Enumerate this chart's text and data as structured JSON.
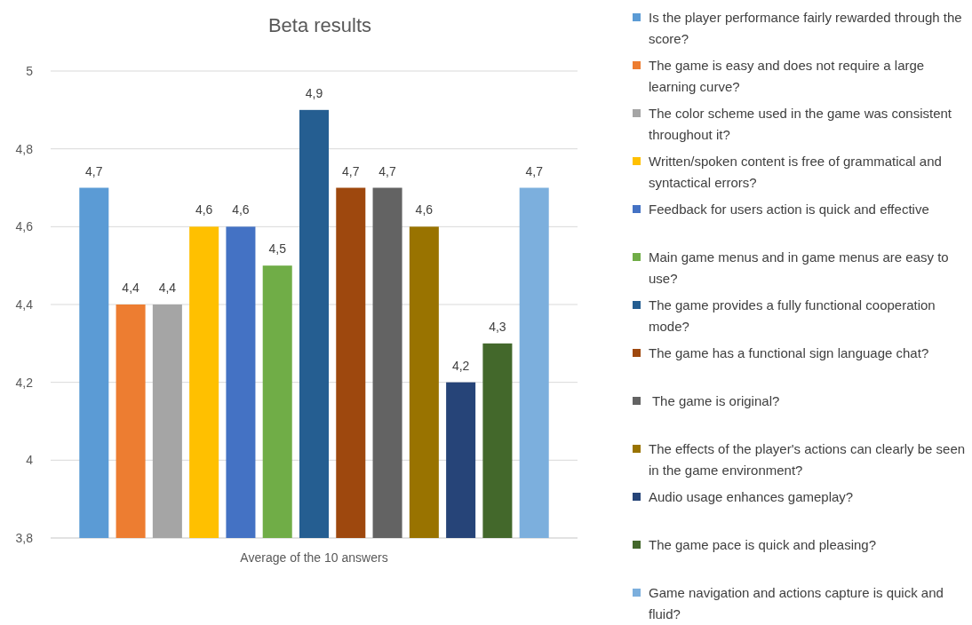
{
  "chart_data": {
    "type": "bar",
    "title": "Beta results",
    "categories": [
      "Average of the 10 answers"
    ],
    "ylim": [
      3.8,
      5
    ],
    "yticks": [
      {
        "value": 3.8,
        "label": "3,8"
      },
      {
        "value": 4,
        "label": "4"
      },
      {
        "value": 4.2,
        "label": "4,2"
      },
      {
        "value": 4.4,
        "label": "4,4"
      },
      {
        "value": 4.6,
        "label": "4,6"
      },
      {
        "value": 4.8,
        "label": "4,8"
      },
      {
        "value": 5,
        "label": "5"
      }
    ],
    "grid": "y",
    "legend": "right",
    "series": [
      {
        "name": "Is the player performance fairly rewarded through the score?",
        "color": "#5b9bd5",
        "values": [
          4.7
        ],
        "value_labels": [
          "4,7"
        ]
      },
      {
        "name": "The game is easy and does not require a large learning curve?",
        "color": "#ed7d31",
        "values": [
          4.4
        ],
        "value_labels": [
          "4,4"
        ]
      },
      {
        "name": "The color scheme used in the game was consistent throughout it?",
        "color": "#a5a5a5",
        "values": [
          4.4
        ],
        "value_labels": [
          "4,4"
        ]
      },
      {
        "name": "Written/spoken content is free of grammatical and syntactical errors?",
        "color": "#ffc000",
        "values": [
          4.6
        ],
        "value_labels": [
          "4,6"
        ]
      },
      {
        "name": "Feedback for users action is quick and effective",
        "color": "#4472c4",
        "values": [
          4.6
        ],
        "value_labels": [
          "4,6"
        ]
      },
      {
        "name": "Main game menus and in game menus are easy to use?",
        "color": "#70ad47",
        "values": [
          4.5
        ],
        "value_labels": [
          "4,5"
        ]
      },
      {
        "name": "The game provides a fully functional cooperation mode?",
        "color": "#255e91",
        "values": [
          4.9
        ],
        "value_labels": [
          "4,9"
        ]
      },
      {
        "name": "The game has a functional sign language chat?",
        "color": "#9e480e",
        "values": [
          4.7
        ],
        "value_labels": [
          "4,7"
        ]
      },
      {
        "name": " The game is original?",
        "color": "#636363",
        "values": [
          4.7
        ],
        "value_labels": [
          "4,7"
        ]
      },
      {
        "name": "The effects of the player's actions can clearly be seen in the game environment?",
        "color": "#997300",
        "values": [
          4.6
        ],
        "value_labels": [
          "4,6"
        ]
      },
      {
        "name": "Audio usage enhances gameplay?",
        "color": "#264478",
        "values": [
          4.2
        ],
        "value_labels": [
          "4,2"
        ]
      },
      {
        "name": "The game pace is quick and pleasing?",
        "color": "#43682b",
        "values": [
          4.3
        ],
        "value_labels": [
          "4,3"
        ]
      },
      {
        "name": "Game navigation and actions capture is quick and fluid?",
        "color": "#7cafdd",
        "values": [
          4.7
        ],
        "value_labels": [
          "4,7"
        ]
      }
    ]
  }
}
